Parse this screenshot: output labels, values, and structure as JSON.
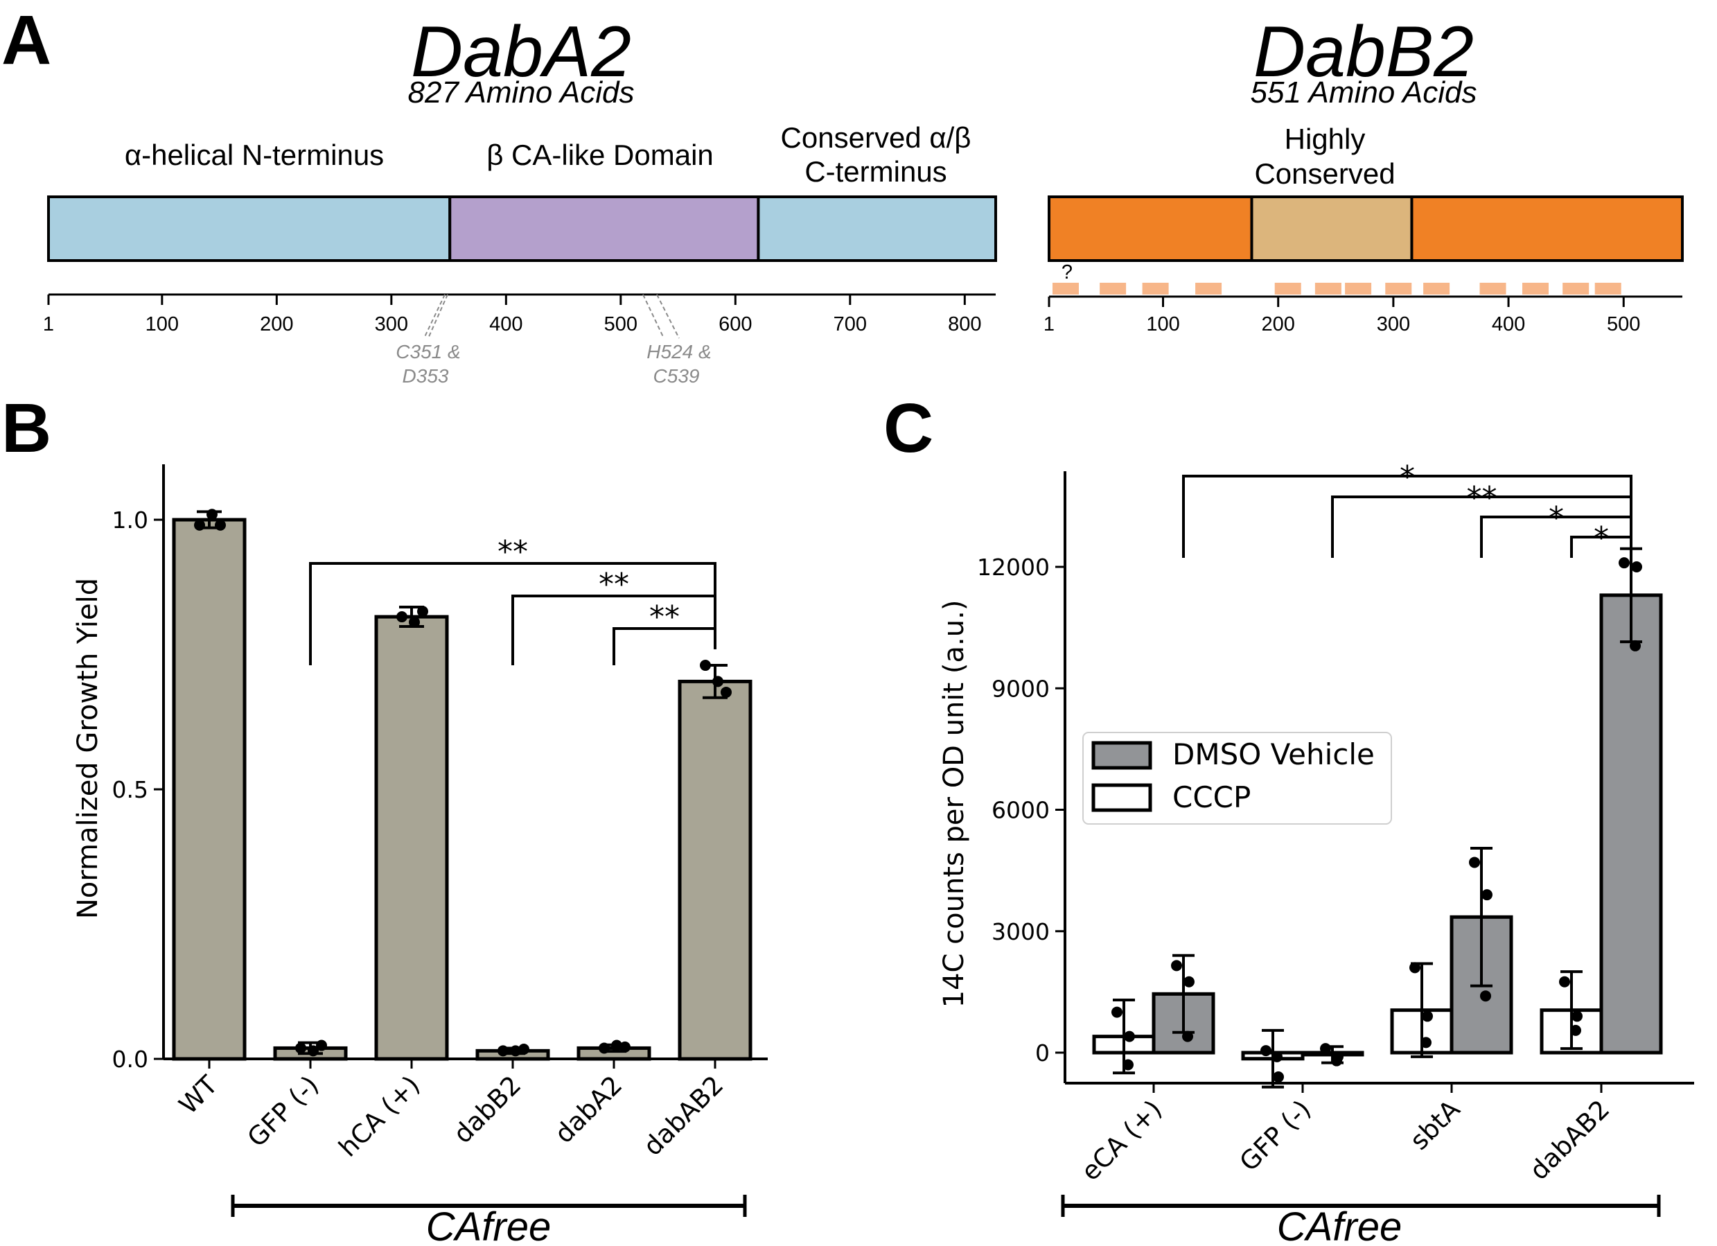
{
  "panel_a": {
    "letter": "A",
    "daba2": {
      "name": "DabA2",
      "subtitle": "827 Amino Acids",
      "domains": [
        {
          "label": "α-helical N-terminus",
          "start": 1,
          "end": 351,
          "color": "#a9cfe0"
        },
        {
          "label": "β CA-like Domain",
          "start": 351,
          "end": 620,
          "color": "#b4a0cc"
        },
        {
          "label_lines": [
            "Conserved α/β",
            "C-terminus"
          ],
          "start": 620,
          "end": 827,
          "color": "#a9cfe0"
        }
      ],
      "axis_ticks": [
        "1",
        "100",
        "200",
        "300",
        "400",
        "500",
        "600",
        "700",
        "800"
      ],
      "site_labels": [
        {
          "lines": [
            "C351 &",
            "D353"
          ]
        },
        {
          "lines": [
            "H524 &",
            "C539"
          ]
        }
      ]
    },
    "dabb2": {
      "name": "DabB2",
      "subtitle": "551 Amino Acids",
      "domains": [
        {
          "label": "",
          "start": 1,
          "end": 177,
          "color": "#f08125"
        },
        {
          "label_lines": [
            "Highly",
            "Conserved"
          ],
          "start": 177,
          "end": 316,
          "color": "#dcb57c"
        },
        {
          "label": "",
          "start": 316,
          "end": 551,
          "color": "#f08125"
        }
      ],
      "axis_ticks": [
        "1",
        "100",
        "200",
        "300",
        "400",
        "500"
      ],
      "tm_question": "?",
      "tm_color": "#f7b689"
    }
  },
  "panel_b": {
    "letter": "B",
    "cafree_label": "CAfree",
    "bar_color": "#a8a595",
    "stars": [
      "**",
      "**",
      "**"
    ],
    "chart_data": {
      "type": "bar",
      "title": "",
      "xlabel": "",
      "ylabel": "Normalized Growth Yield",
      "ylim": [
        0,
        1.1
      ],
      "yticks": [
        "0.0",
        "0.5",
        "1.0"
      ],
      "categories": [
        "WT",
        "GFP (-)",
        "hCA (+)",
        "dabB2",
        "dabA2",
        "dabAB2"
      ],
      "values": [
        1.0,
        0.02,
        0.82,
        0.015,
        0.02,
        0.7
      ],
      "errors": [
        0.015,
        0.01,
        0.018,
        0.005,
        0.006,
        0.03
      ],
      "points": [
        [
          0.99,
          1.01,
          0.99
        ],
        [
          0.02,
          0.015,
          0.025
        ],
        [
          0.82,
          0.81,
          0.83
        ],
        [
          0.015,
          0.015,
          0.018
        ],
        [
          0.02,
          0.025,
          0.022
        ],
        [
          0.73,
          0.7,
          0.68
        ]
      ],
      "significance": [
        {
          "from": "dabB2",
          "to": "dabAB2",
          "label": "**"
        },
        {
          "from": "dabA2",
          "to": "dabAB2",
          "label": "**"
        },
        {
          "from": "GFP (-)",
          "to": "dabAB2",
          "label": "**"
        }
      ]
    }
  },
  "panel_c": {
    "letter": "C",
    "cafree_label": "CAfree",
    "legend": [
      {
        "label": "DMSO Vehicle",
        "color": "#929497"
      },
      {
        "label": "CCCP",
        "color": "#ffffff"
      }
    ],
    "stars": [
      "*",
      "**",
      "*",
      "*"
    ],
    "chart_data": {
      "type": "bar",
      "title": "",
      "xlabel": "",
      "ylabel": "14C counts per OD unit (a.u.)",
      "ylim": [
        -700,
        14500
      ],
      "yticks": [
        "0",
        "3000",
        "6000",
        "9000",
        "12000"
      ],
      "categories": [
        "eCA (+)",
        "GFP (-)",
        "sbtA",
        "dabAB2"
      ],
      "series": [
        {
          "name": "CCCP",
          "values": [
            400,
            -150,
            1050,
            1050
          ],
          "errors": [
            900,
            700,
            1150,
            950
          ],
          "points": [
            [
              1000,
              400,
              -300
            ],
            [
              50,
              -600,
              -100
            ],
            [
              2100,
              900,
              250
            ],
            [
              1750,
              900,
              550
            ]
          ]
        },
        {
          "name": "DMSO Vehicle",
          "values": [
            1450,
            -50,
            3350,
            11300
          ],
          "errors": [
            950,
            200,
            1700,
            1150
          ],
          "points": [
            [
              2150,
              1750,
              400
            ],
            [
              100,
              -100,
              -200
            ],
            [
              4700,
              3900,
              1400
            ],
            [
              12100,
              12000,
              10050
            ]
          ]
        }
      ],
      "significance": [
        {
          "from": "dabAB2 CCCP",
          "to": "dabAB2 DMSO",
          "label": "*"
        },
        {
          "from": "sbtA DMSO",
          "to": "dabAB2 DMSO",
          "label": "*"
        },
        {
          "from": "GFP (-) DMSO",
          "to": "dabAB2 DMSO",
          "label": "**"
        },
        {
          "from": "eCA (+) DMSO",
          "to": "dabAB2 DMSO",
          "label": "*"
        }
      ]
    }
  }
}
